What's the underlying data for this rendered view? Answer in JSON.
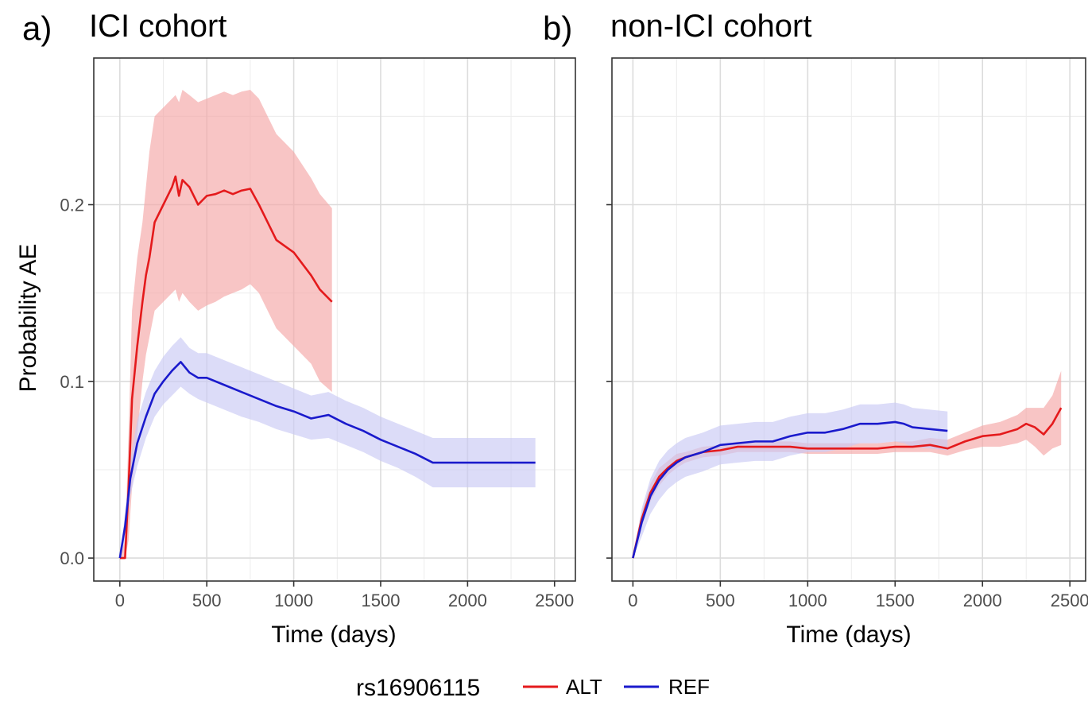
{
  "figure": {
    "legend": {
      "title": "rs16906115",
      "entries": [
        {
          "label": "ALT",
          "color": "#e41a1c"
        },
        {
          "label": "REF",
          "color": "#1a1acc"
        }
      ]
    }
  },
  "chart_data": [
    {
      "type": "line",
      "panel_letter": "a)",
      "title": "ICI cohort",
      "xlabel": "Time (days)",
      "ylabel": "Probability AE",
      "xlim": [
        -150,
        2620
      ],
      "ylim": [
        -0.013,
        0.283
      ],
      "xticks": [
        0,
        500,
        1000,
        1500,
        2000,
        2500
      ],
      "yticks": [
        0.0,
        0.1,
        0.2
      ],
      "ytick_labels": [
        "0.0",
        "0.1",
        "0.2"
      ],
      "grid": true,
      "series": [
        {
          "name": "ALT",
          "color": "#e41a1c",
          "band_color": "#f4a6a6",
          "x": [
            0,
            30,
            50,
            70,
            100,
            130,
            150,
            170,
            200,
            250,
            300,
            320,
            340,
            360,
            400,
            450,
            500,
            550,
            600,
            650,
            700,
            750,
            800,
            850,
            900,
            1000,
            1100,
            1150,
            1220
          ],
          "y": [
            0.0,
            0.0,
            0.04,
            0.09,
            0.12,
            0.145,
            0.16,
            0.17,
            0.19,
            0.2,
            0.21,
            0.216,
            0.205,
            0.214,
            0.21,
            0.2,
            0.205,
            0.206,
            0.208,
            0.206,
            0.208,
            0.209,
            0.2,
            0.19,
            0.18,
            0.173,
            0.16,
            0.152,
            0.145
          ],
          "lower": [
            0.0,
            0.0,
            0.01,
            0.04,
            0.07,
            0.1,
            0.115,
            0.125,
            0.14,
            0.145,
            0.15,
            0.152,
            0.145,
            0.15,
            0.145,
            0.14,
            0.143,
            0.145,
            0.148,
            0.15,
            0.152,
            0.155,
            0.15,
            0.14,
            0.13,
            0.12,
            0.11,
            0.1,
            0.094
          ],
          "upper": [
            0.0,
            0.01,
            0.07,
            0.14,
            0.17,
            0.19,
            0.21,
            0.23,
            0.25,
            0.255,
            0.26,
            0.262,
            0.258,
            0.265,
            0.262,
            0.258,
            0.26,
            0.262,
            0.264,
            0.262,
            0.264,
            0.265,
            0.26,
            0.25,
            0.24,
            0.23,
            0.215,
            0.206,
            0.198
          ]
        },
        {
          "name": "REF",
          "color": "#1a1acc",
          "band_color": "#c9c9f4",
          "x": [
            0,
            30,
            60,
            100,
            150,
            200,
            250,
            300,
            350,
            400,
            450,
            500,
            600,
            700,
            800,
            900,
            1000,
            1100,
            1200,
            1300,
            1400,
            1500,
            1600,
            1700,
            1800,
            1900,
            2000,
            2100,
            2200,
            2300,
            2390
          ],
          "y": [
            0.0,
            0.018,
            0.045,
            0.065,
            0.08,
            0.093,
            0.1,
            0.106,
            0.111,
            0.105,
            0.102,
            0.102,
            0.098,
            0.094,
            0.09,
            0.086,
            0.083,
            0.079,
            0.081,
            0.076,
            0.072,
            0.067,
            0.063,
            0.059,
            0.054,
            0.054,
            0.054,
            0.054,
            0.054,
            0.054,
            0.054
          ],
          "lower": [
            0.0,
            0.01,
            0.035,
            0.052,
            0.068,
            0.08,
            0.087,
            0.092,
            0.097,
            0.093,
            0.09,
            0.088,
            0.084,
            0.08,
            0.077,
            0.073,
            0.07,
            0.067,
            0.068,
            0.064,
            0.06,
            0.055,
            0.051,
            0.046,
            0.04,
            0.04,
            0.04,
            0.04,
            0.04,
            0.04,
            0.04
          ],
          "upper": [
            0.0,
            0.026,
            0.055,
            0.078,
            0.094,
            0.106,
            0.114,
            0.12,
            0.125,
            0.119,
            0.116,
            0.116,
            0.112,
            0.108,
            0.104,
            0.1,
            0.096,
            0.092,
            0.094,
            0.089,
            0.085,
            0.08,
            0.076,
            0.072,
            0.068,
            0.068,
            0.068,
            0.068,
            0.068,
            0.068,
            0.068
          ]
        }
      ]
    },
    {
      "type": "line",
      "panel_letter": "b)",
      "title": "non-ICI cohort",
      "xlabel": "Time (days)",
      "ylabel": "",
      "xlim": [
        -120,
        2590
      ],
      "ylim": [
        -0.013,
        0.283
      ],
      "xticks": [
        0,
        500,
        1000,
        1500,
        2000,
        2500
      ],
      "yticks": [
        0.0,
        0.1,
        0.2
      ],
      "grid": true,
      "series": [
        {
          "name": "ALT",
          "color": "#e41a1c",
          "band_color": "#f4a6a6",
          "x": [
            0,
            50,
            100,
            150,
            200,
            250,
            300,
            400,
            500,
            600,
            700,
            800,
            900,
            1000,
            1100,
            1200,
            1300,
            1400,
            1500,
            1600,
            1700,
            1800,
            1900,
            2000,
            2100,
            2200,
            2250,
            2300,
            2350,
            2400,
            2450
          ],
          "y": [
            0.0,
            0.022,
            0.037,
            0.046,
            0.051,
            0.055,
            0.057,
            0.06,
            0.061,
            0.063,
            0.063,
            0.063,
            0.063,
            0.062,
            0.062,
            0.062,
            0.062,
            0.062,
            0.063,
            0.063,
            0.064,
            0.062,
            0.066,
            0.069,
            0.07,
            0.073,
            0.076,
            0.074,
            0.07,
            0.076,
            0.085
          ],
          "lower": [
            0.0,
            0.018,
            0.032,
            0.041,
            0.047,
            0.051,
            0.054,
            0.057,
            0.058,
            0.06,
            0.06,
            0.06,
            0.06,
            0.059,
            0.059,
            0.059,
            0.059,
            0.059,
            0.06,
            0.06,
            0.06,
            0.058,
            0.061,
            0.063,
            0.063,
            0.065,
            0.067,
            0.063,
            0.058,
            0.062,
            0.064
          ],
          "upper": [
            0.0,
            0.026,
            0.042,
            0.051,
            0.055,
            0.059,
            0.06,
            0.063,
            0.064,
            0.066,
            0.066,
            0.066,
            0.066,
            0.065,
            0.065,
            0.065,
            0.065,
            0.065,
            0.066,
            0.066,
            0.068,
            0.067,
            0.071,
            0.075,
            0.077,
            0.081,
            0.085,
            0.085,
            0.085,
            0.092,
            0.106
          ]
        },
        {
          "name": "REF",
          "color": "#1a1acc",
          "band_color": "#c9c9f4",
          "x": [
            0,
            50,
            100,
            150,
            200,
            250,
            300,
            400,
            500,
            600,
            700,
            750,
            800,
            900,
            1000,
            1100,
            1200,
            1300,
            1400,
            1500,
            1550,
            1600,
            1700,
            1800
          ],
          "y": [
            0.0,
            0.02,
            0.035,
            0.044,
            0.05,
            0.054,
            0.057,
            0.06,
            0.064,
            0.065,
            0.066,
            0.066,
            0.066,
            0.069,
            0.071,
            0.071,
            0.073,
            0.076,
            0.076,
            0.077,
            0.076,
            0.074,
            0.073,
            0.072
          ],
          "lower": [
            0.0,
            0.012,
            0.025,
            0.033,
            0.039,
            0.043,
            0.046,
            0.049,
            0.053,
            0.054,
            0.055,
            0.055,
            0.055,
            0.058,
            0.06,
            0.06,
            0.062,
            0.065,
            0.065,
            0.066,
            0.065,
            0.063,
            0.062,
            0.061
          ],
          "upper": [
            0.0,
            0.028,
            0.045,
            0.055,
            0.061,
            0.065,
            0.068,
            0.071,
            0.075,
            0.076,
            0.077,
            0.077,
            0.077,
            0.08,
            0.082,
            0.082,
            0.084,
            0.087,
            0.087,
            0.088,
            0.087,
            0.085,
            0.084,
            0.083
          ]
        }
      ]
    }
  ]
}
